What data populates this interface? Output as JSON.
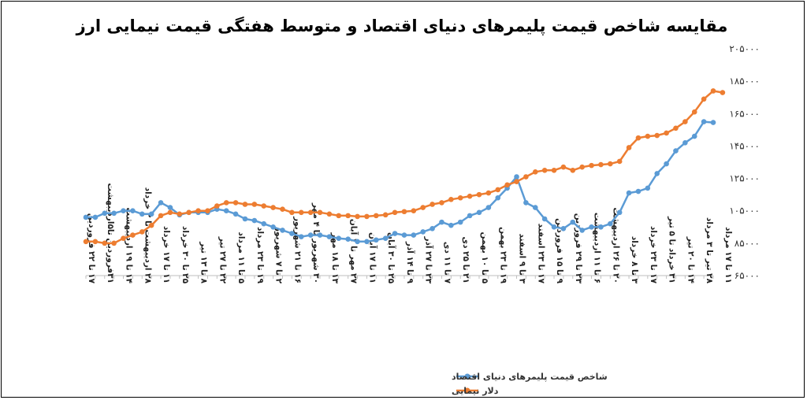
{
  "chart_data": {
    "type": "line",
    "title": "مقایسه شاخص قیمت پلیمرهای دنیای اقتصاد و متوسط هفتگی قیمت نیمایی ارز",
    "xlabel": "",
    "ylabel": "",
    "ylim": [
      65000,
      205000
    ],
    "yticks": [
      65000,
      85000,
      105000,
      125000,
      145000,
      165000,
      185000,
      205000
    ],
    "ytick_labels": [
      "۶۵۰۰۰",
      "۸۵۰۰۰",
      "۱۰۵۰۰۰",
      "۱۲۵۰۰۰",
      "۱۴۵۰۰۰",
      "۱۶۵۰۰۰",
      "۱۸۵۰۰۰",
      "۲۰۵۰۰۰"
    ],
    "grid": false,
    "legend_position": "bottom",
    "x_labels": [
      {
        "index": 0,
        "text": "۱۷ تا ۲۲ فروردین"
      },
      {
        "index": 2,
        "text": "۳۱فروردین تا۵اردیبهشت"
      },
      {
        "index": 4,
        "text": "۱۴ تا ۱۹ اردیبهشت"
      },
      {
        "index": 6,
        "text": "۲۸ اردیبهشت تا ۲ خرداد"
      },
      {
        "index": 8,
        "text": "۱۱ تا ۱۷ خرداد"
      },
      {
        "index": 10,
        "text": "۲۵ تا ۳۰ خرداد"
      },
      {
        "index": 12,
        "text": "۸ تا ۱۳ تیر"
      },
      {
        "index": 14,
        "text": "۲۲ تا ۲۷ تیر"
      },
      {
        "index": 16,
        "text": "۵ تا ۱۱ مرداد"
      },
      {
        "index": 18,
        "text": "۱۹ تا ۲۳ مرداد"
      },
      {
        "index": 20,
        "text": "۲ تا ۷ شهریور"
      },
      {
        "index": 22,
        "text": "۱۶ تا ۲۱ شهریور"
      },
      {
        "index": 24,
        "text": "۳۰ شهریور تا ۴ مهر"
      },
      {
        "index": 26,
        "text": "۱۳ تا ۱۸ مهر"
      },
      {
        "index": 28,
        "text": "۲۷ مهر تا ۱ آبان"
      },
      {
        "index": 30,
        "text": "۱۱ تا ۱۷ آبان"
      },
      {
        "index": 32,
        "text": "۲۵ تا ۳۰ آبان"
      },
      {
        "index": 34,
        "text": "۹ تا ۱۴ آذر"
      },
      {
        "index": 36,
        "text": "۲۳ تا ۲۷ آذر"
      },
      {
        "index": 38,
        "text": "۷ تا ۱۱ دی"
      },
      {
        "index": 40,
        "text": "۲۱ تا ۲۵ دی"
      },
      {
        "index": 42,
        "text": "۵ تا ۱۰ بهمن"
      },
      {
        "index": 44,
        "text": "۱۹ تا ۲۳ بهمن"
      },
      {
        "index": 46,
        "text": "۳ تا ۹ اسفند"
      },
      {
        "index": 48,
        "text": "۱۷ تا ۲۳ اسفند"
      },
      {
        "index": 50,
        "text": "۹ تا ۱۵ فروردین"
      },
      {
        "index": 52,
        "text": "۲۳ تا ۲۹ فروردین"
      },
      {
        "index": 54,
        "text": "۶ تا ۱۱ اردیبهشت"
      },
      {
        "index": 56,
        "text": "۲۰ تا ۲۶ اردیبهشت"
      },
      {
        "index": 58,
        "text": "۳ تا ۸ خرداد"
      },
      {
        "index": 60,
        "text": "۱۷ تا ۲۳ خرداد"
      },
      {
        "index": 62,
        "text": "۳۱ خرداد تا ۵ تیر"
      },
      {
        "index": 64,
        "text": "۱۴ تا ۲۰ تیر"
      },
      {
        "index": 66,
        "text": "۲۸ تیر تا ۳ مرداد"
      },
      {
        "index": 68,
        "text": "۱۱ تا ۱۷ مرداد"
      }
    ],
    "series": [
      {
        "name": "شاخص قیمت پلیمرهای دنیای اقتصاد",
        "color": "#5b9bd5",
        "values": [
          101000,
          101000,
          103500,
          103500,
          105000,
          105000,
          103000,
          103000,
          110000,
          107000,
          102500,
          104000,
          104000,
          104000,
          106000,
          105000,
          103000,
          100000,
          99000,
          97000,
          95000,
          93000,
          91000,
          89000,
          90000,
          90000,
          89000,
          88000,
          87500,
          86000,
          86000,
          87000,
          88000,
          91000,
          90000,
          90000,
          92000,
          94000,
          98000,
          96000,
          98000,
          102000,
          104000,
          107000,
          113000,
          119000,
          126000,
          110000,
          107000,
          100000,
          95000,
          94000,
          98000,
          93000,
          95000,
          95000,
          97000,
          104000,
          116000,
          117000,
          119000,
          128000,
          134000,
          142000,
          147000,
          151000,
          160000,
          159500
        ]
      },
      {
        "name": "دلار نیمایی",
        "color": "#ed7d31",
        "values": [
          86000,
          86000,
          85000,
          85000,
          88000,
          90000,
          92000,
          96000,
          102000,
          104000,
          103000,
          104000,
          105000,
          105000,
          108000,
          110000,
          110000,
          109000,
          109000,
          108000,
          107000,
          106000,
          104000,
          104000,
          104000,
          104000,
          103000,
          102000,
          102000,
          101500,
          101500,
          102000,
          102500,
          104000,
          104500,
          105000,
          107000,
          109000,
          110000,
          112000,
          113000,
          114000,
          115000,
          116000,
          118000,
          121000,
          123000,
          126000,
          129000,
          130000,
          130000,
          132000,
          130000,
          132000,
          133000,
          133500,
          134000,
          135500,
          144000,
          150000,
          151000,
          151500,
          153000,
          156000,
          160000,
          166000,
          174000,
          179000,
          178000
        ]
      }
    ]
  }
}
